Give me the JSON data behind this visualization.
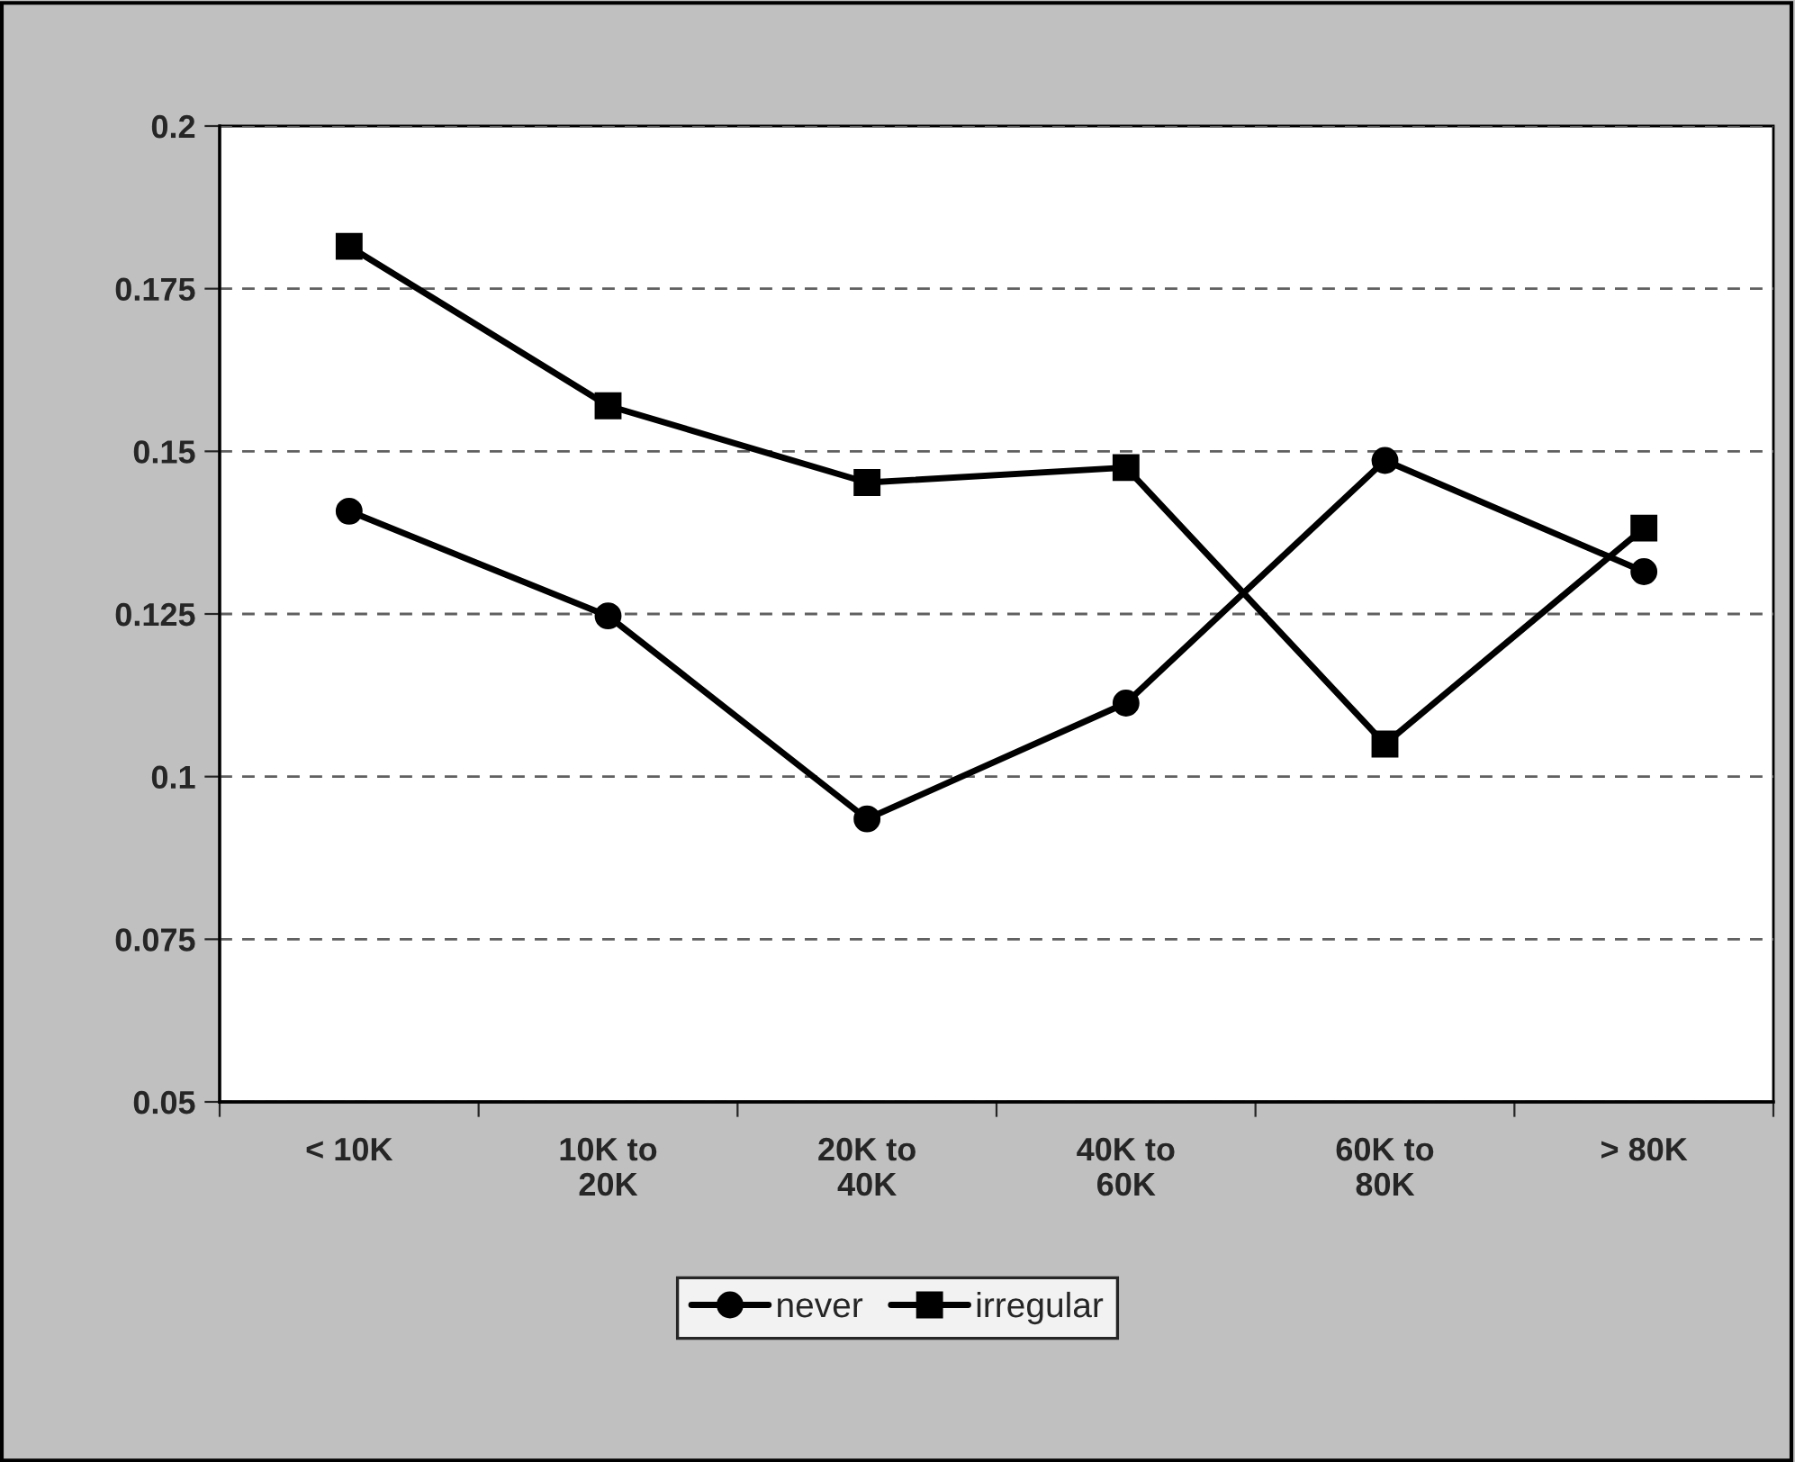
{
  "chart_data": {
    "type": "line",
    "categories": [
      "< 10K",
      "10K to\n20K",
      "20K to\n40K",
      "40K to\n60K",
      "60K to\n80K",
      "> 80K"
    ],
    "series": [
      {
        "name": "never",
        "color": "#000000",
        "marker": "circle",
        "values": [
          0.1408,
          0.1247,
          0.0935,
          0.1113,
          0.1486,
          0.1315
        ]
      },
      {
        "name": "irregular",
        "color": "#000000",
        "marker": "square",
        "values": [
          0.1815,
          0.157,
          0.1452,
          0.1475,
          0.105,
          0.1382
        ]
      }
    ],
    "ylim": [
      0.05,
      0.2
    ],
    "yticks": [
      0.05,
      0.075,
      0.1,
      0.125,
      0.15,
      0.175,
      0.2
    ],
    "grid": "y",
    "legend": "bottom",
    "line_style": "solid"
  }
}
